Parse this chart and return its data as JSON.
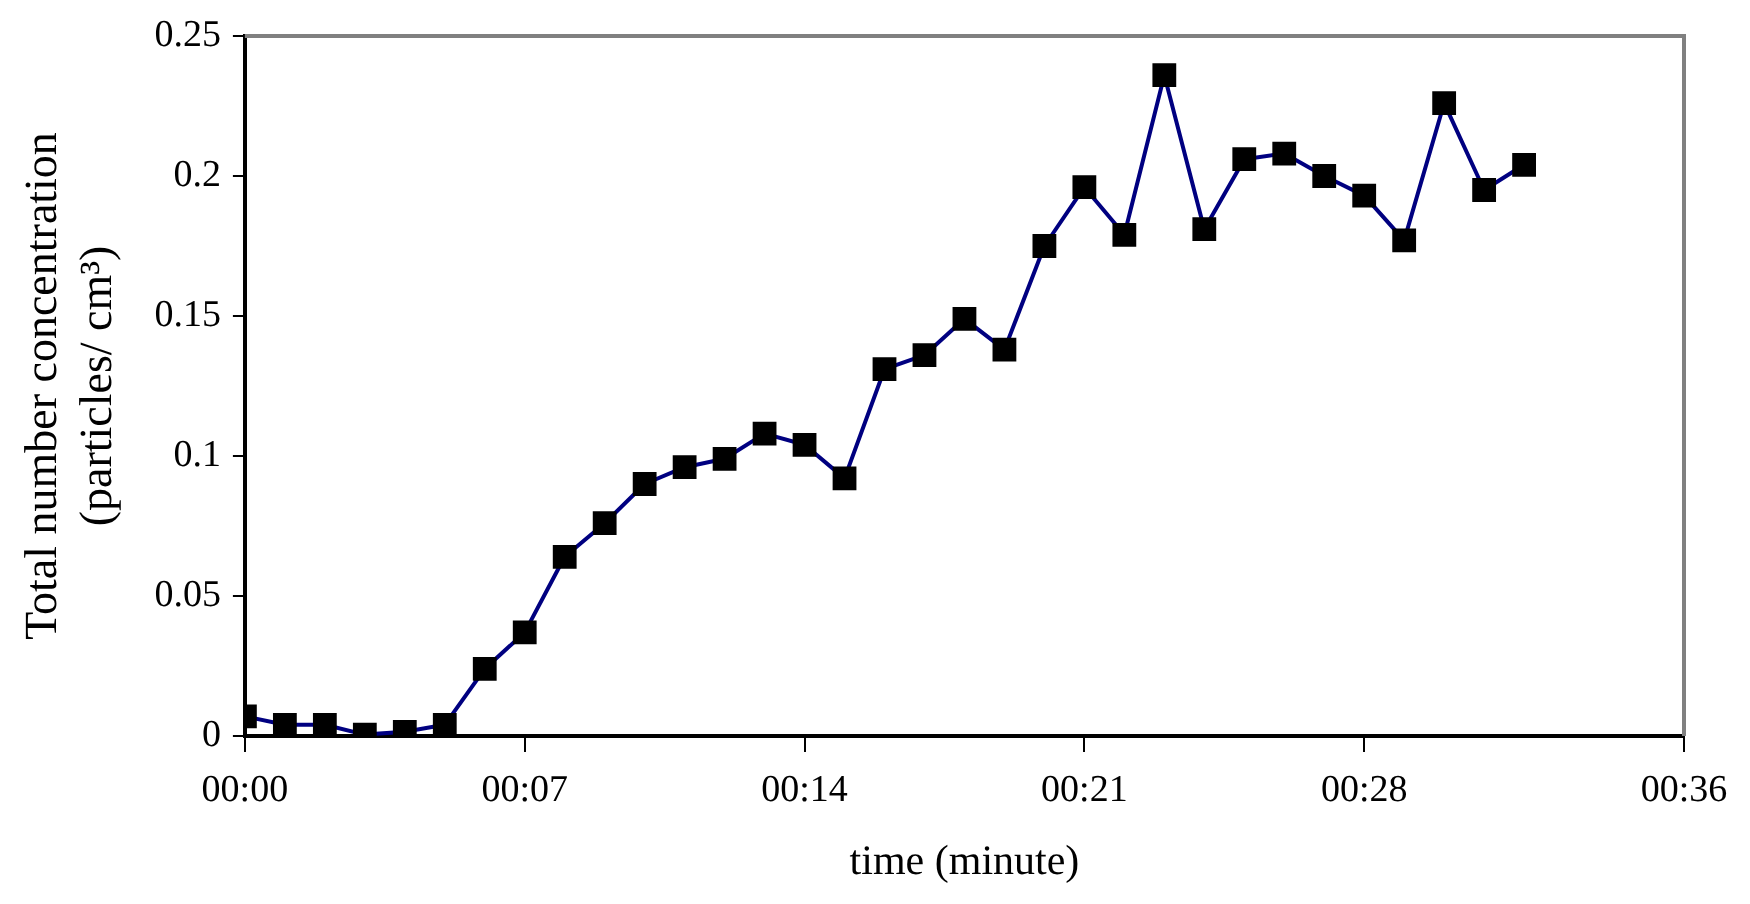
{
  "chart_data": {
    "type": "line",
    "xlabel": "time (minute)",
    "ylabel": "Total number concentration\n(particles/ cm³)",
    "x": [
      0,
      1,
      2,
      3,
      4,
      5,
      6,
      7,
      8,
      9,
      10,
      11,
      12,
      13,
      14,
      15,
      16,
      17,
      18,
      19,
      20,
      21,
      22,
      23,
      24,
      25,
      26,
      27,
      28,
      29,
      30,
      31,
      32
    ],
    "series": [
      {
        "color": "#000080",
        "values": [
          0.007,
          0.004,
          0.004,
          0.0005,
          0.0015,
          0.004,
          0.024,
          0.037,
          0.064,
          0.076,
          0.09,
          0.096,
          0.099,
          0.108,
          0.104,
          0.092,
          0.131,
          0.136,
          0.149,
          0.138,
          0.175,
          0.196,
          0.179,
          0.236,
          0.181,
          0.206,
          0.208,
          0.2,
          0.193,
          0.177,
          0.226,
          0.195,
          0.204
        ]
      }
    ],
    "xlim": [
      0,
      36
    ],
    "xticks": [
      {
        "value": 0,
        "label": "00:00"
      },
      {
        "value": 7,
        "label": "00:07"
      },
      {
        "value": 14,
        "label": "00:14"
      },
      {
        "value": 21,
        "label": "00:21"
      },
      {
        "value": 28,
        "label": "00:28"
      },
      {
        "value": 36,
        "label": "00:36"
      }
    ],
    "ylim": [
      0,
      0.25
    ],
    "yticks": [
      0,
      0.05,
      0.1,
      0.15,
      0.2,
      0.25
    ],
    "grid": false,
    "legend": false,
    "marker": "square",
    "line_style": "solid"
  }
}
